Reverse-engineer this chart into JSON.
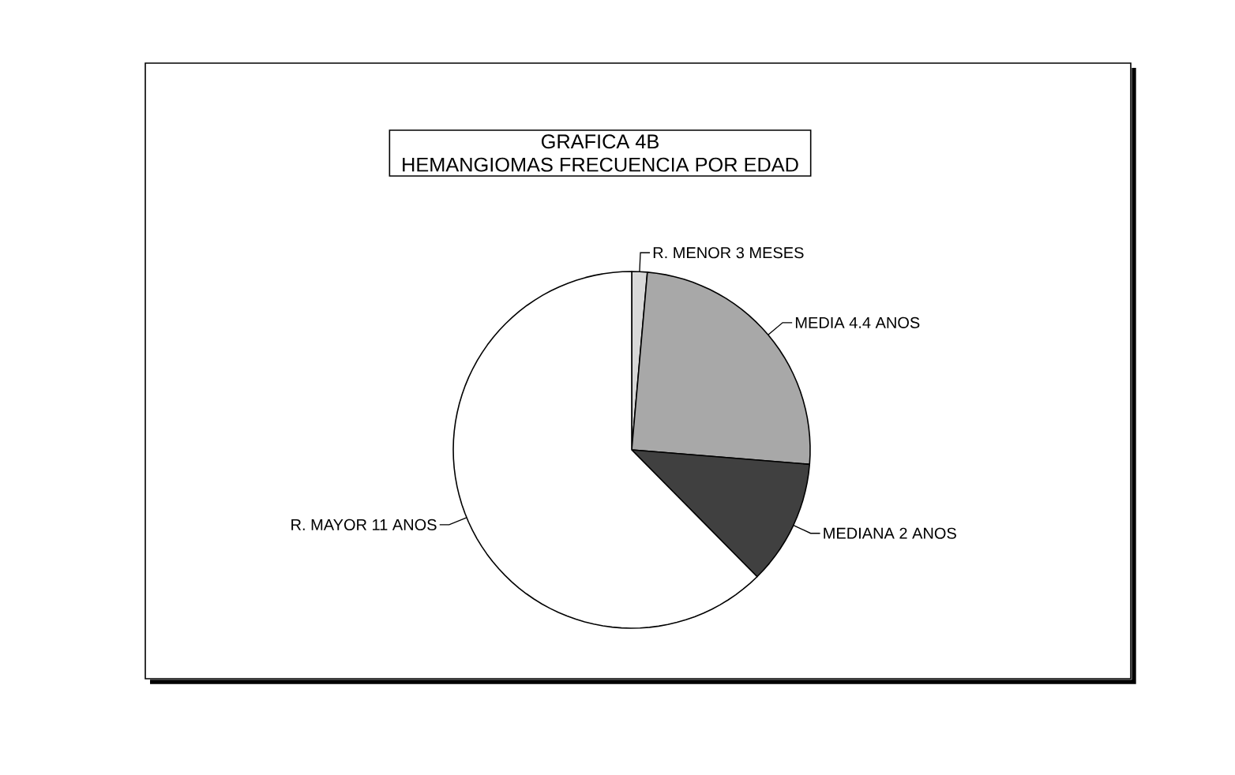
{
  "chart_data": {
    "type": "pie",
    "title": "GRAFICA 4B",
    "subtitle": "HEMANGIOMAS FRECUENCIA POR EDAD",
    "categories": [
      "R. MENOR 3 MESES",
      "MEDIA 4.4 ANOS",
      "MEDIANA 2 ANOS",
      "R. MAYOR 11 ANOS"
    ],
    "values": [
      1.4,
      24.9,
      11.3,
      62.4
    ],
    "colors": [
      "#d8d8d8",
      "#a8a8a8",
      "#404040",
      "#ffffff"
    ]
  }
}
